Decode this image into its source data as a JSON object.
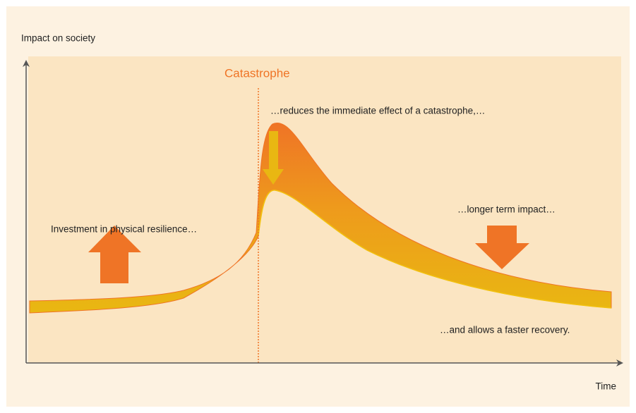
{
  "y_axis_label": "Impact on society",
  "x_axis_label": "Time",
  "event_label": "Catastrophe",
  "annotations": {
    "immediate": "…reduces the immediate effect of a catastrophe,…",
    "investment": "Investment in physical resilience…",
    "longer_term": "…longer term impact…",
    "recovery": "…and allows a faster recovery."
  }
}
